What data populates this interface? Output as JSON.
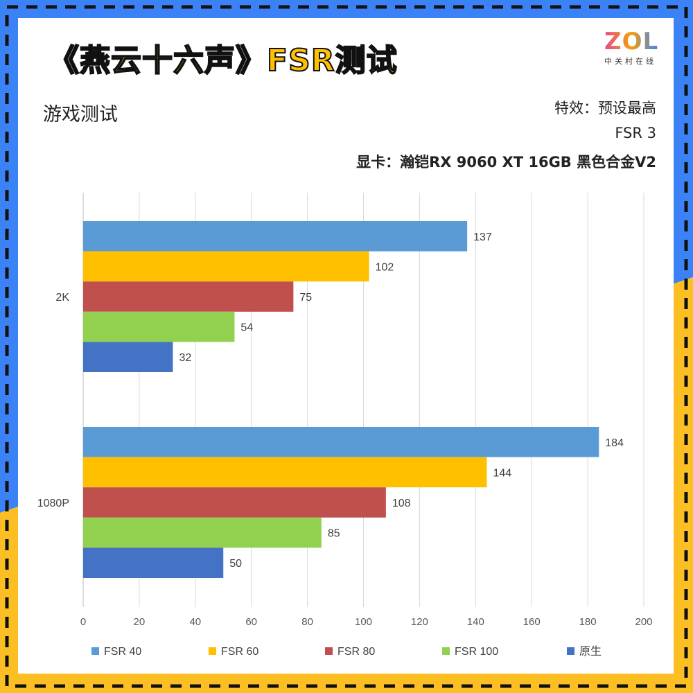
{
  "title": "《燕云十六声》FSR测试",
  "logo": {
    "text": "ZOL",
    "subtitle": "中关村在线"
  },
  "subtitle": "游戏测试",
  "info": {
    "line1": "特效：预设最高",
    "line2": "FSR 3",
    "line3": "显卡：瀚铠RX 9060 XT 16GB 黑色合金V2"
  },
  "colors": {
    "frame_blue": "#3b82f6",
    "frame_yellow": "#fbbf24",
    "title_fill": "#ffc000"
  },
  "chart_data": {
    "type": "bar",
    "orientation": "horizontal",
    "categories": [
      "2K",
      "1080P"
    ],
    "series": [
      {
        "name": "FSR 40",
        "color": "#5b9bd5",
        "values": [
          137,
          184
        ]
      },
      {
        "name": "FSR 60",
        "color": "#ffc000",
        "values": [
          102,
          144
        ]
      },
      {
        "name": "FSR 80",
        "color": "#c0504d",
        "values": [
          75,
          108
        ]
      },
      {
        "name": "FSR 100",
        "color": "#92d050",
        "values": [
          54,
          85
        ]
      },
      {
        "name": "原生",
        "color": "#4472c4",
        "values": [
          32,
          50
        ]
      }
    ],
    "xlim": [
      0,
      200
    ],
    "xticks": [
      0,
      20,
      40,
      60,
      80,
      100,
      120,
      140,
      160,
      180,
      200
    ],
    "grid": true,
    "data_labels": true,
    "legend": "bottom"
  }
}
